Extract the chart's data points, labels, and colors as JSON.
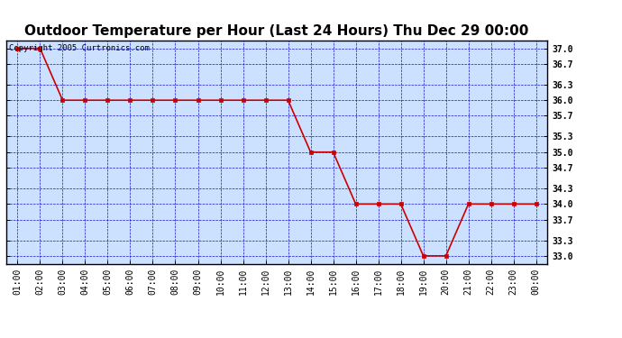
{
  "title": "Outdoor Temperature per Hour (Last 24 Hours) Thu Dec 29 00:00",
  "copyright_text": "Copyright 2005 Curtronics.com",
  "x_labels": [
    "01:00",
    "02:00",
    "03:00",
    "04:00",
    "05:00",
    "06:00",
    "07:00",
    "08:00",
    "09:00",
    "10:00",
    "11:00",
    "12:00",
    "13:00",
    "14:00",
    "15:00",
    "16:00",
    "17:00",
    "18:00",
    "19:00",
    "20:00",
    "21:00",
    "22:00",
    "23:00",
    "00:00"
  ],
  "hours": [
    1,
    2,
    3,
    4,
    5,
    6,
    7,
    8,
    9,
    10,
    11,
    12,
    13,
    14,
    15,
    16,
    17,
    18,
    19,
    20,
    21,
    22,
    23,
    24
  ],
  "temperatures": [
    37.0,
    37.0,
    36.0,
    36.0,
    36.0,
    36.0,
    36.0,
    36.0,
    36.0,
    36.0,
    36.0,
    36.0,
    36.0,
    35.0,
    35.0,
    34.0,
    34.0,
    34.0,
    33.0,
    33.0,
    34.0,
    34.0,
    34.0,
    34.0
  ],
  "line_color": "#cc0000",
  "marker_color": "#cc0000",
  "bg_color": "#ffffff",
  "plot_bg_color": "#cce0ff",
  "grid_color": "#0000cc",
  "title_fontsize": 11,
  "axis_label_fontsize": 7,
  "copyright_fontsize": 6.5,
  "ylim_min": 32.85,
  "ylim_max": 37.15,
  "yticks": [
    33.0,
    33.3,
    33.7,
    34.0,
    34.3,
    34.7,
    35.0,
    35.3,
    35.7,
    36.0,
    36.3,
    36.7,
    37.0
  ],
  "outer_border_color": "#000000"
}
